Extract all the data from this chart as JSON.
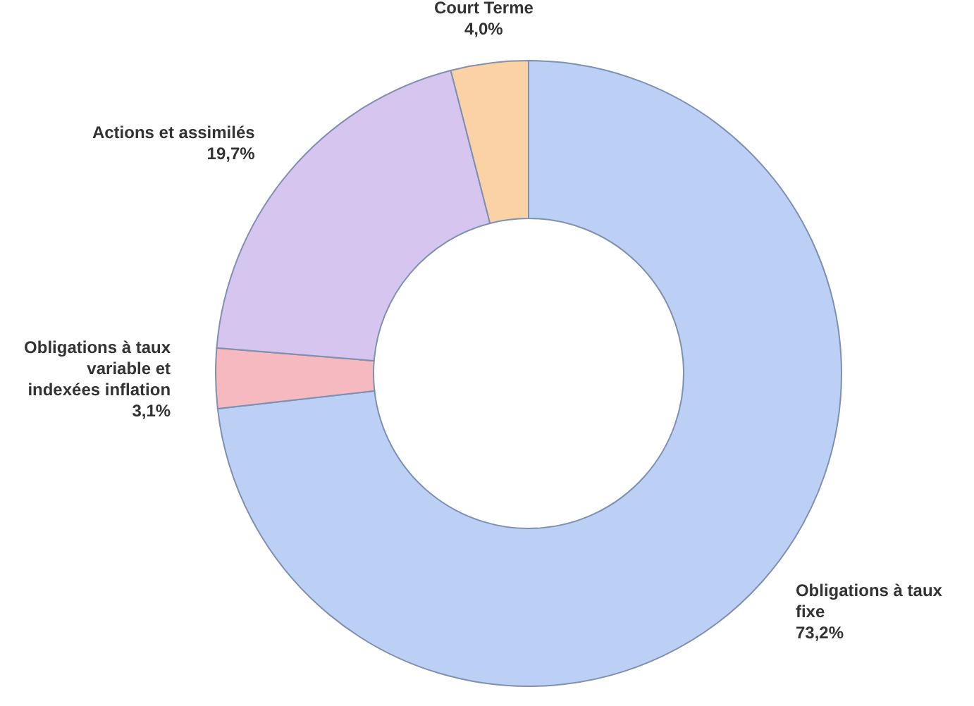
{
  "chart_data": {
    "type": "donut",
    "categories": [
      "Obligations à taux fixe",
      "Obligations à taux variable et indexées inflation",
      "Actions et assimilés",
      "Court Terme"
    ],
    "values": [
      73.2,
      3.1,
      19.7,
      4.0
    ],
    "value_labels": [
      "73,2%",
      "3,1%",
      "19,7%",
      "4,0%"
    ],
    "colors": [
      "#bcd0f5",
      "#f6b9c0",
      "#d6c6ef",
      "#fbd1a6"
    ]
  }
}
